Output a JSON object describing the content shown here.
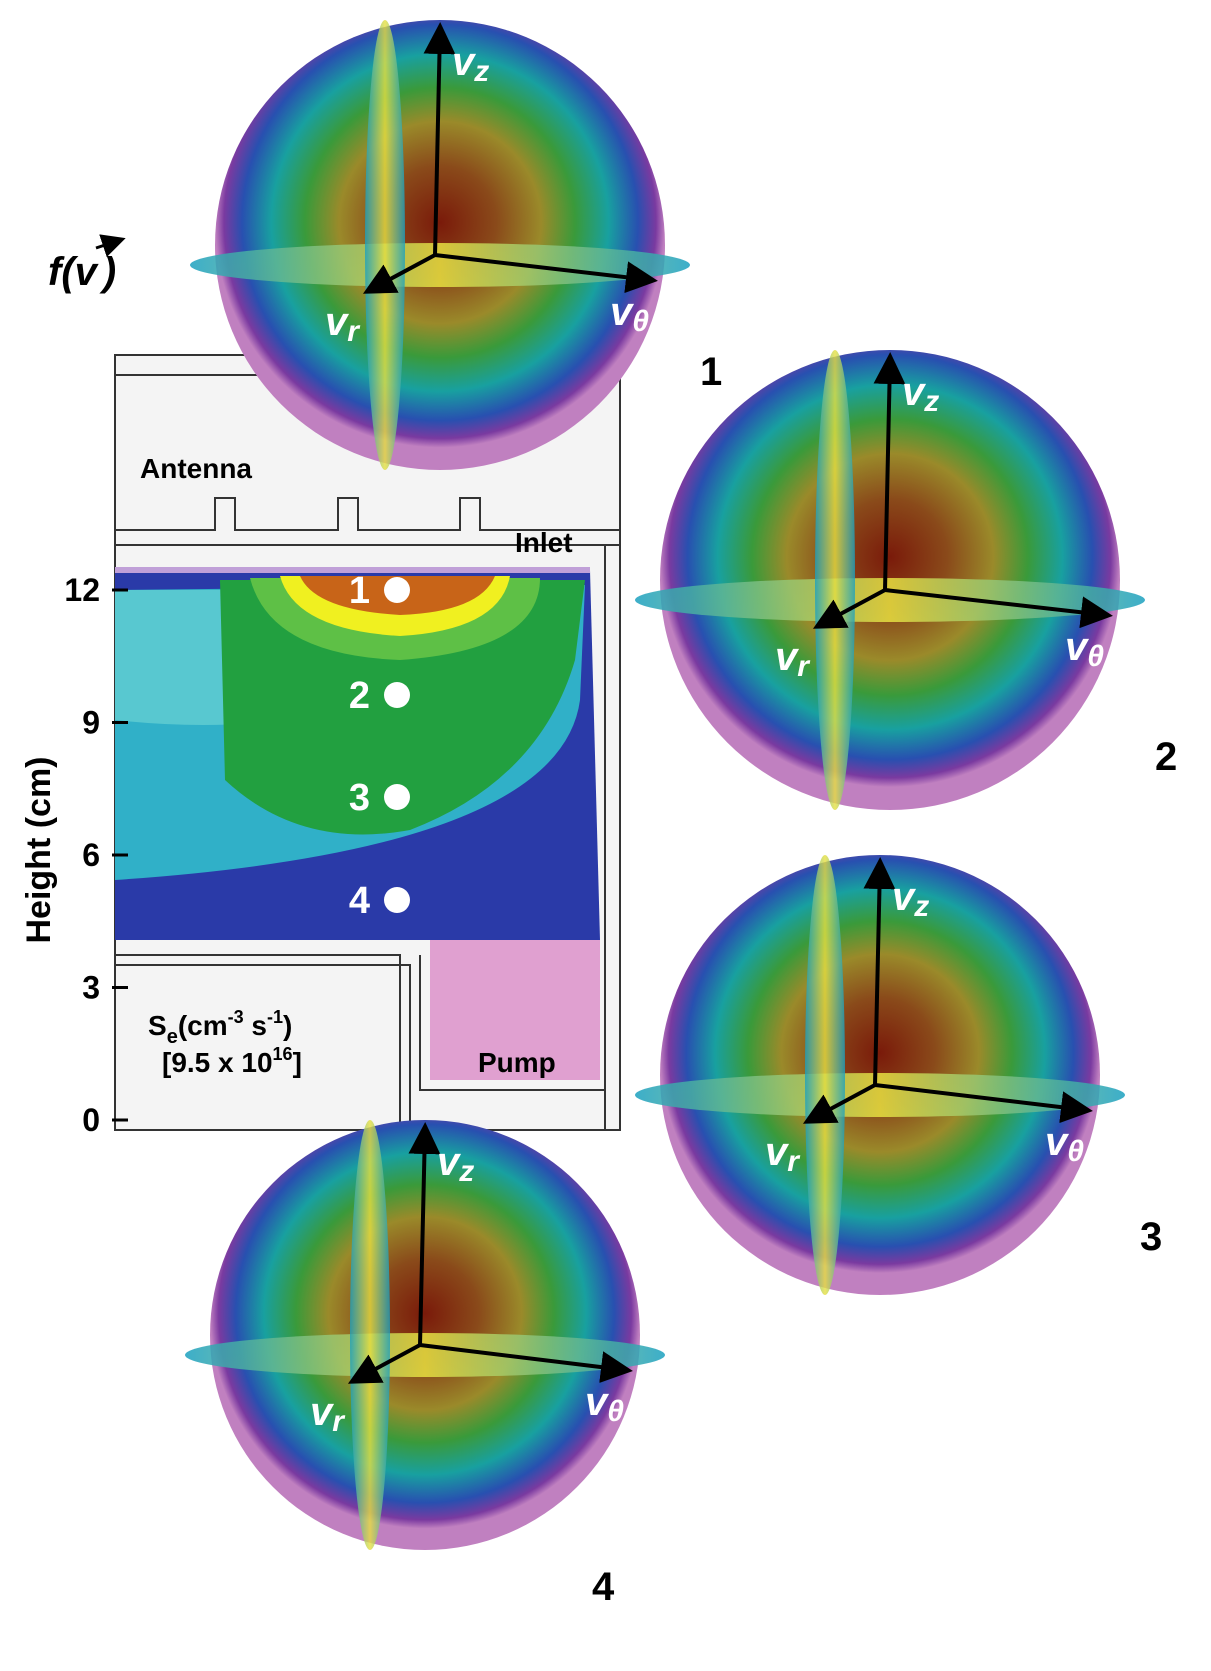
{
  "figure_label": {
    "function": "f(",
    "vector": "v",
    "close": ")"
  },
  "axis": {
    "label": "Height (cm)",
    "ticks": [
      0,
      3,
      6,
      9,
      12
    ]
  },
  "regions": {
    "antenna": "Antenna",
    "inlet": "Inlet",
    "pump": "Pump"
  },
  "source": {
    "symbol": "S",
    "subscript": "e",
    "unit_open": "(cm",
    "unit_exp1": "-3",
    "unit_mid": " s",
    "unit_exp2": "-1",
    "unit_close": ")",
    "scale_open": "[9.5 x 10",
    "scale_exp": "16",
    "scale_close": "]"
  },
  "probes": [
    "1",
    "2",
    "3",
    "4"
  ],
  "distributions": [
    {
      "label": "1",
      "axes": [
        {
          "symbol": "v",
          "sub": "z"
        },
        {
          "symbol": "v",
          "sub": "r"
        },
        {
          "symbol": "v",
          "sub": "θ"
        }
      ]
    },
    {
      "label": "2",
      "axes": [
        {
          "symbol": "v",
          "sub": "z"
        },
        {
          "symbol": "v",
          "sub": "r"
        },
        {
          "symbol": "v",
          "sub": "θ"
        }
      ]
    },
    {
      "label": "3",
      "axes": [
        {
          "symbol": "v",
          "sub": "z"
        },
        {
          "symbol": "v",
          "sub": "r"
        },
        {
          "symbol": "v",
          "sub": "θ"
        }
      ]
    },
    {
      "label": "4",
      "axes": [
        {
          "symbol": "v",
          "sub": "z"
        },
        {
          "symbol": "v",
          "sub": "r"
        },
        {
          "symbol": "v",
          "sub": "θ"
        }
      ]
    }
  ]
}
